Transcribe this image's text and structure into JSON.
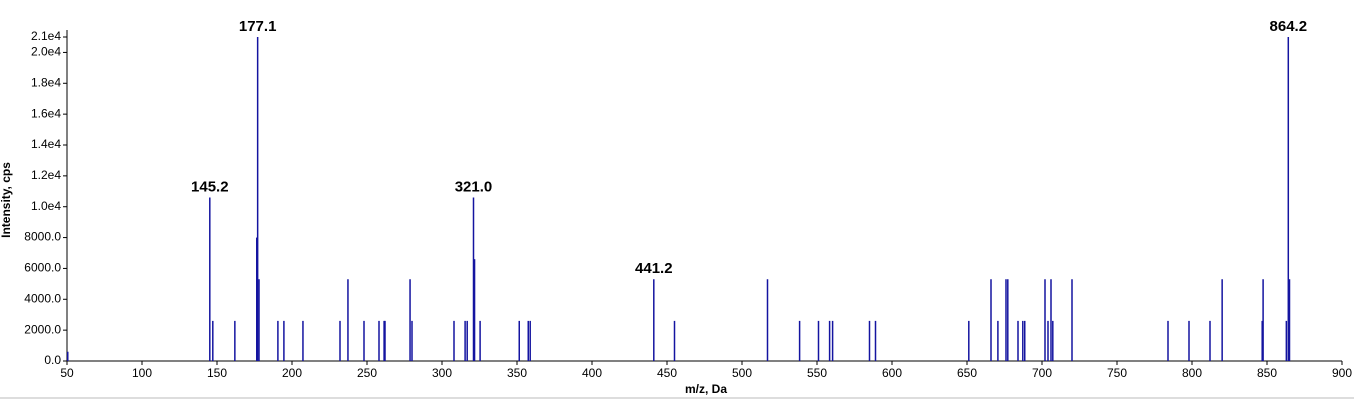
{
  "chart_data": {
    "type": "stem",
    "x_label": "m/z, Da",
    "y_label": "Intensity, cps",
    "x": [
      50.5,
      145.2,
      147.2,
      161.9,
      176.5,
      177.1,
      178.0,
      190.6,
      194.6,
      207.3,
      232.0,
      237.3,
      248.0,
      258.0,
      261.4,
      262.0,
      278.7,
      280.0,
      308.0,
      315.4,
      316.8,
      321.0,
      321.7,
      325.4,
      351.5,
      357.5,
      358.8,
      441.2,
      455.0,
      517.0,
      538.4,
      551.0,
      558.4,
      560.4,
      585.0,
      589.0,
      651.2,
      666.0,
      670.6,
      676.0,
      677.2,
      684.0,
      687.2,
      688.5,
      702.0,
      704.0,
      706.0,
      707.2,
      720.0,
      784.0,
      798.0,
      812.0,
      820.1,
      846.8,
      847.4,
      862.9,
      864.2,
      865.0
    ],
    "values": [
      600,
      10600,
      2600,
      2600,
      8000,
      21000,
      5300,
      2600,
      2600,
      2600,
      2600,
      5300,
      2600,
      2600,
      2600,
      2600,
      5300,
      2600,
      2600,
      2600,
      2600,
      10600,
      6600,
      2600,
      2600,
      2600,
      2600,
      5300,
      2600,
      5300,
      2600,
      2600,
      2600,
      2600,
      2600,
      2600,
      2600,
      5300,
      2600,
      5300,
      5300,
      2600,
      2600,
      2600,
      5300,
      2600,
      5300,
      2600,
      5300,
      2600,
      2600,
      2600,
      5300,
      2600,
      5300,
      2600,
      21000,
      5300
    ],
    "x_labels": [
      null,
      "145.2",
      null,
      null,
      null,
      "177.1",
      null,
      null,
      null,
      null,
      null,
      null,
      null,
      null,
      null,
      null,
      null,
      null,
      null,
      null,
      null,
      "321.0",
      null,
      null,
      null,
      null,
      null,
      "441.2",
      null,
      null,
      null,
      null,
      null,
      null,
      null,
      null,
      null,
      null,
      null,
      null,
      null,
      null,
      null,
      null,
      null,
      null,
      null,
      null,
      null,
      null,
      null,
      null,
      null,
      null,
      null,
      null,
      "864.2",
      null
    ],
    "color": "#1414a0",
    "xlim": [
      50,
      900
    ],
    "xticks": [
      50,
      100,
      150,
      200,
      250,
      300,
      350,
      400,
      450,
      500,
      550,
      600,
      650,
      700,
      750,
      800,
      850,
      900
    ],
    "ylim": [
      0,
      21000
    ],
    "yticks": [
      {
        "value": 0,
        "label": "0.0"
      },
      {
        "value": 2000,
        "label": "2000.0"
      },
      {
        "value": 4000,
        "label": "4000.0"
      },
      {
        "value": 6000,
        "label": "6000.0"
      },
      {
        "value": 8000,
        "label": "8000.0"
      },
      {
        "value": 10000,
        "label": "1.0e4"
      },
      {
        "value": 12000,
        "label": "1.2e4"
      },
      {
        "value": 14000,
        "label": "1.4e4"
      },
      {
        "value": 16000,
        "label": "1.6e4"
      },
      {
        "value": 18000,
        "label": "1.8e4"
      },
      {
        "value": 20000,
        "label": "2.0e4"
      },
      {
        "value": 21000,
        "label": "2.1e4"
      }
    ],
    "grid": false
  }
}
